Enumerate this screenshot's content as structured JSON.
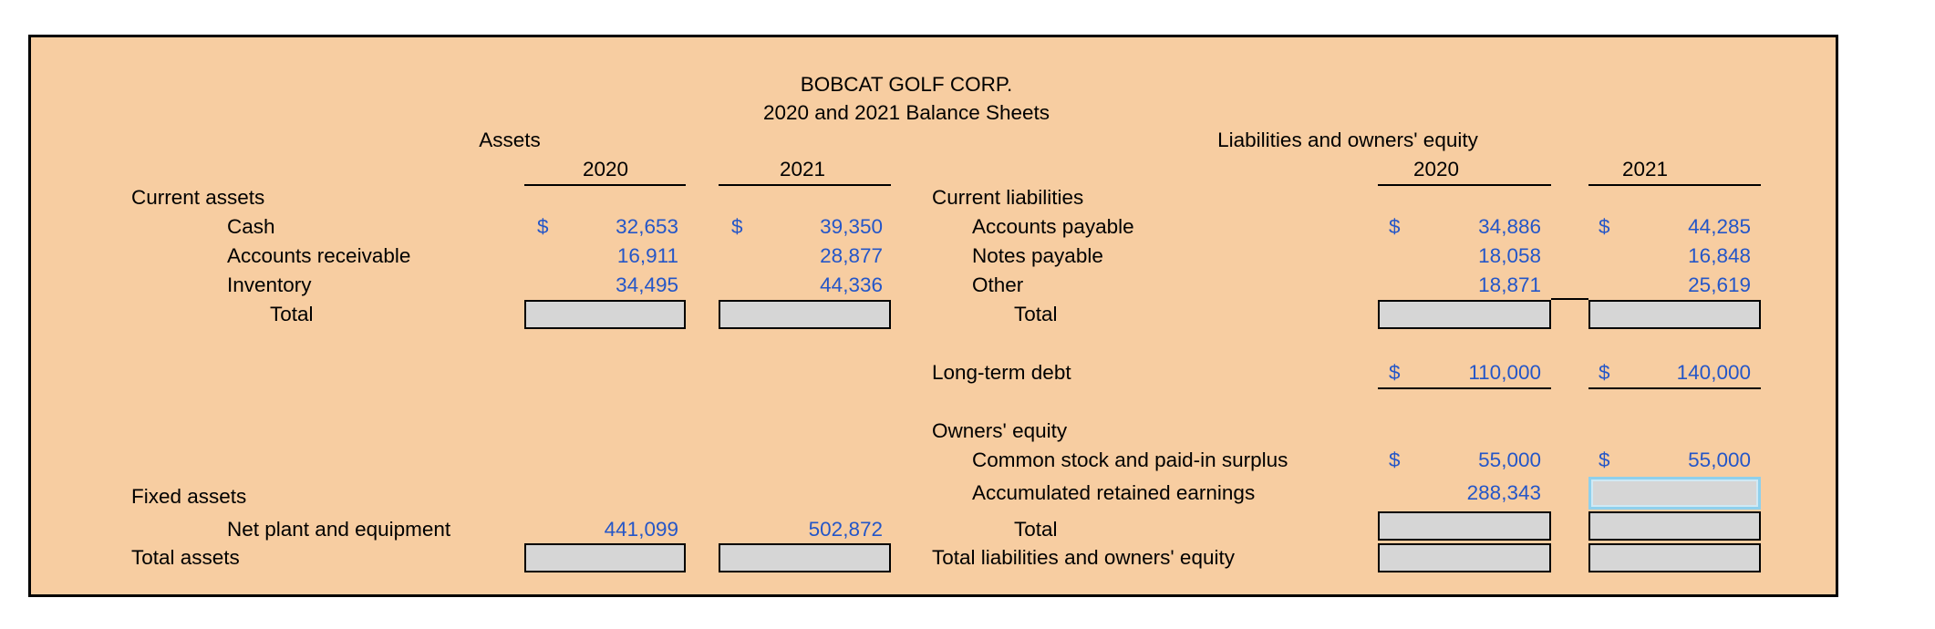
{
  "company": "BOBCAT GOLF CORP.",
  "subtitle": "2020 and 2021 Balance Sheets",
  "assets_title": "Assets",
  "liab_title": "Liabilities and owners' equity",
  "year_2020": "2020",
  "year_2021": "2021",
  "dollar": "$",
  "assets": {
    "current_label": "Current assets",
    "cash_label": "Cash",
    "ar_label": "Accounts receivable",
    "inv_label": "Inventory",
    "total_label": "Total",
    "cash_2020": "32,653",
    "cash_2021": "39,350",
    "ar_2020": "16,911",
    "ar_2021": "28,877",
    "inv_2020": "34,495",
    "inv_2021": "44,336",
    "fixed_label": "Fixed assets",
    "npe_label": "Net plant and equipment",
    "npe_2020": "441,099",
    "npe_2021": "502,872",
    "total_assets_label": "Total assets"
  },
  "liabilities": {
    "current_label": "Current liabilities",
    "ap_label": "Accounts payable",
    "np_label": "Notes payable",
    "other_label": "Other",
    "total_label": "Total",
    "ap_2020": "34,886",
    "ap_2021": "44,285",
    "np_2020": "18,058",
    "np_2021": "16,848",
    "other_2020": "18,871",
    "other_2021": "25,619",
    "ltd_label": "Long-term debt",
    "ltd_2020": "110,000",
    "ltd_2021": "140,000",
    "equity_label": "Owners' equity",
    "cs_label": "Common stock and paid-in surplus",
    "cs_2020": "55,000",
    "cs_2021": "55,000",
    "re_label": "Accumulated retained earnings",
    "re_2020": "288,343",
    "eq_total_label": "Total",
    "total_le_label": "Total liabilities and owners' equity"
  }
}
